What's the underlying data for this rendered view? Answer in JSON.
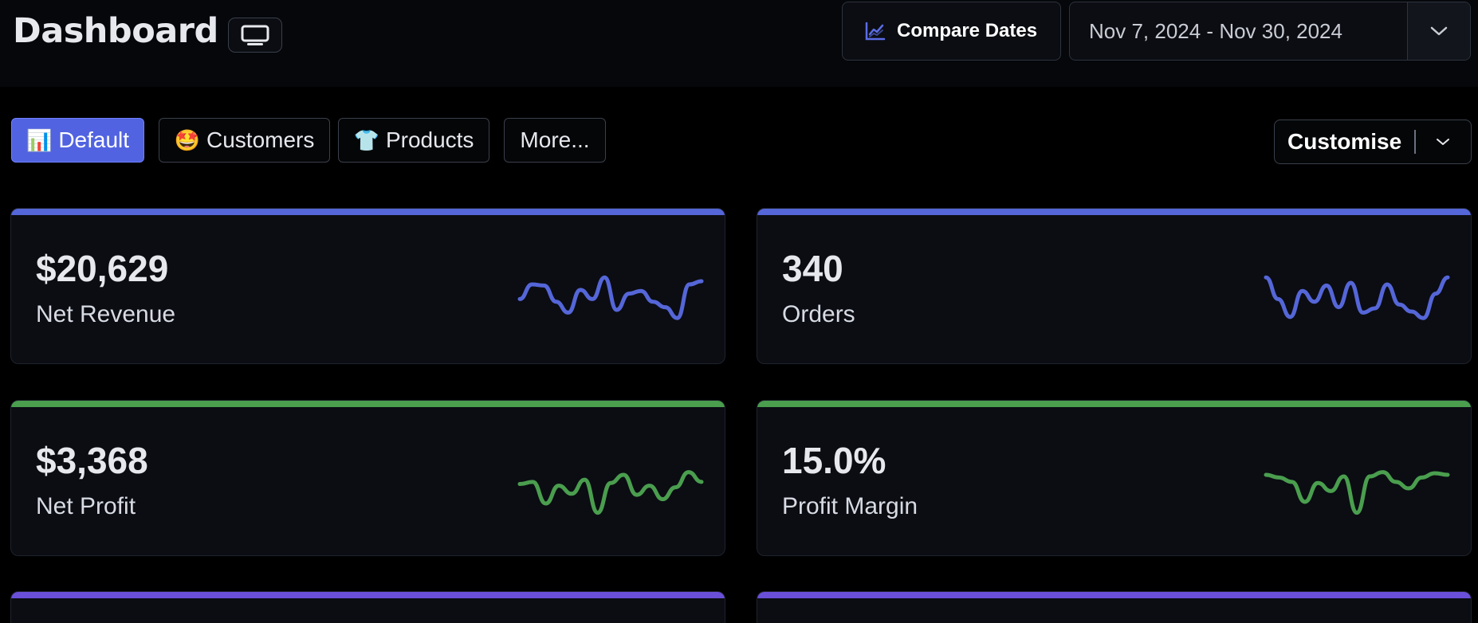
{
  "header": {
    "title": "Dashboard",
    "compare_label": "Compare Dates",
    "date_range": "Nov 7, 2024 - Nov 30, 2024"
  },
  "tabs": [
    {
      "emoji": "📊",
      "label": "Default",
      "active": true
    },
    {
      "emoji": "🤩",
      "label": "Customers",
      "active": false
    },
    {
      "emoji": "👕",
      "label": "Products",
      "active": false
    },
    {
      "emoji": "",
      "label": "More...",
      "active": false
    }
  ],
  "customise": {
    "label": "Customise"
  },
  "colors": {
    "blue": "#5566d8",
    "green": "#4a9e4e",
    "purple": "#6a4fd9",
    "accent_tab": "#5163e0"
  },
  "cards": [
    {
      "value": "$20,629",
      "label": "Net Revenue",
      "color": "blue",
      "spark": [
        0.45,
        0.72,
        0.7,
        0.4,
        0.2,
        0.62,
        0.45,
        0.85,
        0.25,
        0.55,
        0.6,
        0.4,
        0.3,
        0.1,
        0.72,
        0.78
      ]
    },
    {
      "value": "340",
      "label": "Orders",
      "color": "blue",
      "spark": [
        0.85,
        0.45,
        0.12,
        0.6,
        0.4,
        0.7,
        0.3,
        0.75,
        0.2,
        0.28,
        0.72,
        0.35,
        0.22,
        0.1,
        0.55,
        0.85
      ]
    },
    {
      "value": "$3,368",
      "label": "Net Profit",
      "color": "green",
      "spark": [
        0.58,
        0.62,
        0.22,
        0.55,
        0.4,
        0.66,
        0.05,
        0.6,
        0.75,
        0.38,
        0.55,
        0.3,
        0.52,
        0.8,
        0.62
      ]
    },
    {
      "value": "15.0%",
      "label": "Profit Margin",
      "color": "green",
      "spark": [
        0.75,
        0.7,
        0.62,
        0.25,
        0.6,
        0.45,
        0.72,
        0.05,
        0.72,
        0.8,
        0.62,
        0.5,
        0.7,
        0.78,
        0.75
      ]
    }
  ],
  "partial_cards": [
    {
      "color": "purple"
    },
    {
      "color": "purple"
    }
  ]
}
